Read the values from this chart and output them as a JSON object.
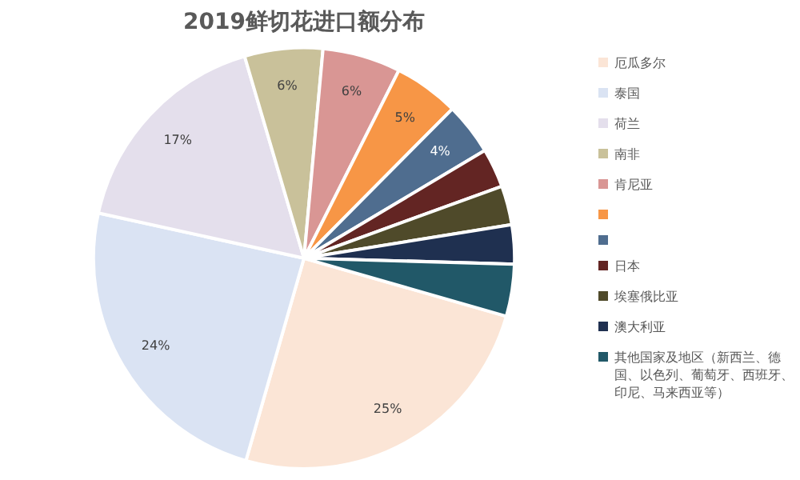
{
  "chart_data": {
    "type": "pie",
    "title": "2019鲜切花进口额分布",
    "categories": [
      "厄瓜多尔",
      "泰国",
      "荷兰",
      "南非",
      "肯尼亚",
      null,
      null,
      "日本",
      "埃塞俄比亚",
      "澳大利亚",
      "其他国家及地区（新西兰、德国、以色列、葡萄牙、西班牙、印尼、马来西亚等）"
    ],
    "values": [
      25,
      24,
      17,
      6,
      6,
      5,
      4,
      3,
      3,
      3,
      4
    ],
    "value_labels": [
      "25%",
      "24%",
      "17%",
      "6%",
      "6%",
      "5%",
      "4%",
      null,
      null,
      null,
      null
    ],
    "colors": [
      "#fbe5d6",
      "#dae3f3",
      "#e4dfec",
      "#c9c19a",
      "#d99694",
      "#f79646",
      "#4f6d8f",
      "#632523",
      "#4f4a2a",
      "#1f3050",
      "#215868"
    ],
    "legend": "right"
  }
}
